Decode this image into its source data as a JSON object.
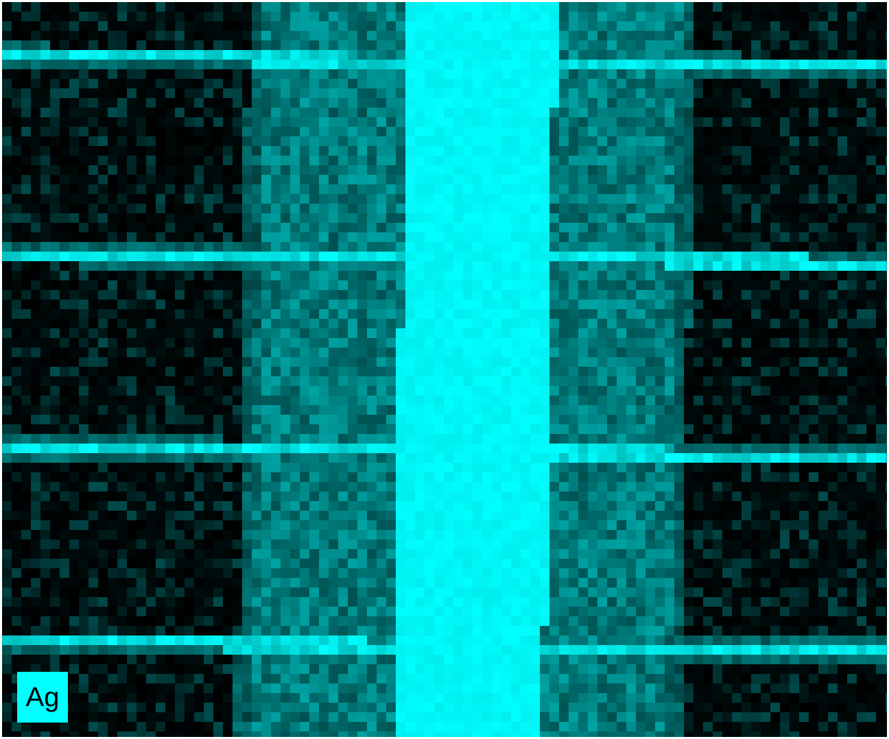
{
  "map": {
    "element_label": "Ag",
    "color": "#00ffff",
    "background_color": "#000000"
  }
}
